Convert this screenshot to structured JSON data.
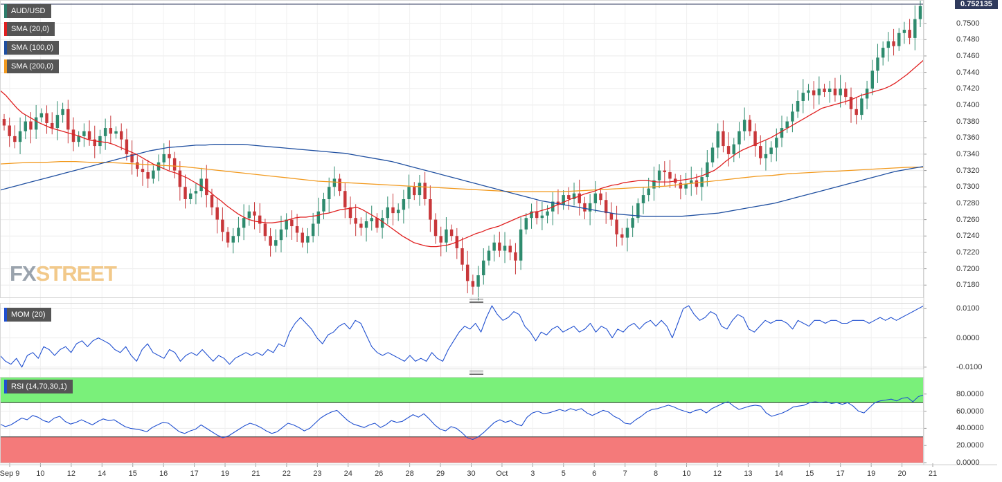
{
  "legend": {
    "symbol": "AUD/USD",
    "sma20": "SMA (20,0)",
    "sma100": "SMA (100,0)",
    "sma200": "SMA (200,0)",
    "mom": "MOM (20)",
    "rsi": "RSI (14,70,30,1)"
  },
  "colors": {
    "symbol": "#2e7d6b",
    "sma20": "#e02020",
    "sma100": "#1f4fa0",
    "sma200": "#f29a1f",
    "mom": "#1f4fd0",
    "rsi": "#1f4fd0",
    "bull": "#2e8b6e",
    "bear": "#c8373a",
    "rsi_overbought": "#7af07a",
    "rsi_oversold": "#f47a7a"
  },
  "watermark": {
    "part1": "FX",
    "part2": "STREET"
  },
  "last_price_label": "0.752135",
  "chart_data": [
    {
      "type": "candlestick",
      "title": "AUD/USD",
      "ylim": [
        0.7165,
        0.7525
      ],
      "yticks": [
        "0.7500",
        "0.7480",
        "0.7460",
        "0.7440",
        "0.7420",
        "0.7400",
        "0.7380",
        "0.7360",
        "0.7340",
        "0.7320",
        "0.7300",
        "0.7280",
        "0.7260",
        "0.7240",
        "0.7220",
        "0.7200",
        "0.7180"
      ],
      "x_labels": [
        "Sep 9",
        "10",
        "12",
        "14",
        "15",
        "16",
        "17",
        "19",
        "21",
        "22",
        "23",
        "24",
        "26",
        "28",
        "29",
        "30",
        "Oct",
        "3",
        "5",
        "6",
        "7",
        "8",
        "10",
        "12",
        "13",
        "14",
        "15",
        "17",
        "19",
        "20",
        "21"
      ],
      "closes": [
        0.7375,
        0.7362,
        0.7355,
        0.7368,
        0.738,
        0.737,
        0.7385,
        0.739,
        0.7378,
        0.7372,
        0.7388,
        0.7395,
        0.737,
        0.7355,
        0.7362,
        0.7368,
        0.7358,
        0.735,
        0.7362,
        0.7372,
        0.7365,
        0.7368,
        0.7358,
        0.734,
        0.733,
        0.7322,
        0.7318,
        0.731,
        0.732,
        0.733,
        0.734,
        0.7335,
        0.732,
        0.73,
        0.7285,
        0.7292,
        0.7295,
        0.731,
        0.729,
        0.7275,
        0.726,
        0.7245,
        0.7232,
        0.724,
        0.725,
        0.7262,
        0.727,
        0.7265,
        0.7255,
        0.724,
        0.7228,
        0.7235,
        0.7248,
        0.726,
        0.7252,
        0.7244,
        0.7232,
        0.724,
        0.7255,
        0.727,
        0.7285,
        0.73,
        0.731,
        0.7295,
        0.7275,
        0.7262,
        0.7255,
        0.725,
        0.7258,
        0.7262,
        0.725,
        0.7262,
        0.7275,
        0.7268,
        0.7272,
        0.7285,
        0.73,
        0.729,
        0.7305,
        0.7285,
        0.726,
        0.724,
        0.7232,
        0.7248,
        0.724,
        0.7225,
        0.7205,
        0.7185,
        0.7178,
        0.7192,
        0.721,
        0.7222,
        0.7232,
        0.7222,
        0.7228,
        0.722,
        0.721,
        0.7248,
        0.7262,
        0.727,
        0.7262,
        0.7265,
        0.727,
        0.7282,
        0.7278,
        0.729,
        0.7285,
        0.7292,
        0.728,
        0.727,
        0.728,
        0.7292,
        0.7284,
        0.7268,
        0.726,
        0.7242,
        0.7238,
        0.725,
        0.7262,
        0.728,
        0.729,
        0.7298,
        0.7308,
        0.732,
        0.7318,
        0.731,
        0.7305,
        0.7298,
        0.7304,
        0.7308,
        0.73,
        0.7312,
        0.733,
        0.7348,
        0.7368,
        0.735,
        0.734,
        0.7352,
        0.7368,
        0.7382,
        0.7368,
        0.735,
        0.7335,
        0.734,
        0.7348,
        0.736,
        0.7372,
        0.738,
        0.7392,
        0.7405,
        0.7415,
        0.7418,
        0.7412,
        0.742,
        0.7416,
        0.742,
        0.7412,
        0.742,
        0.741,
        0.7395,
        0.7388,
        0.7408,
        0.742,
        0.7442,
        0.7458,
        0.747,
        0.7478,
        0.7472,
        0.7488,
        0.7492,
        0.7482,
        0.7505,
        0.7521
      ],
      "series": [
        {
          "name": "SMA (20,0)",
          "values": [
            0.7418,
            0.7412,
            0.7404,
            0.7396,
            0.739,
            0.7386,
            0.7382,
            0.7378,
            0.7375,
            0.7372,
            0.737,
            0.7368,
            0.7366,
            0.7364,
            0.7362,
            0.7359,
            0.7357,
            0.7356,
            0.7355,
            0.7354,
            0.7352,
            0.7349,
            0.7346,
            0.7343,
            0.734,
            0.7336,
            0.7332,
            0.7328,
            0.7325,
            0.7322,
            0.7319,
            0.7317,
            0.7314,
            0.7311,
            0.7307,
            0.7303,
            0.7299,
            0.7294,
            0.7288,
            0.7283,
            0.7277,
            0.7272,
            0.7267,
            0.7263,
            0.726,
            0.7258,
            0.7257,
            0.7256,
            0.7256,
            0.7257,
            0.7258,
            0.726,
            0.7262,
            0.7263,
            0.7263,
            0.7264,
            0.7265,
            0.7267,
            0.7268,
            0.727,
            0.7272,
            0.7273,
            0.7274,
            0.7275,
            0.7272,
            0.7268,
            0.7264,
            0.726,
            0.7255,
            0.725,
            0.7245,
            0.724,
            0.7236,
            0.7232,
            0.723,
            0.7228,
            0.7227,
            0.7227,
            0.7228,
            0.7229,
            0.7231,
            0.7234,
            0.7237,
            0.724,
            0.7243,
            0.7245,
            0.7248,
            0.725,
            0.7252,
            0.7255,
            0.7258,
            0.7261,
            0.7264,
            0.7266,
            0.7269,
            0.727,
            0.7272,
            0.7274,
            0.7277,
            0.728,
            0.7283,
            0.7286,
            0.7288,
            0.7291,
            0.7293,
            0.7295,
            0.7298,
            0.73,
            0.7302,
            0.7303,
            0.7305,
            0.7306,
            0.7307,
            0.7308,
            0.7308,
            0.7307,
            0.7306,
            0.7306,
            0.7306,
            0.7307,
            0.7308,
            0.7309,
            0.731,
            0.7312,
            0.7314,
            0.7317,
            0.732,
            0.7325,
            0.7331,
            0.7336,
            0.7341,
            0.7345,
            0.7348,
            0.7351,
            0.7354,
            0.7357,
            0.736,
            0.7364,
            0.7368,
            0.7372,
            0.7376,
            0.738,
            0.7384,
            0.7388,
            0.7392,
            0.7396,
            0.7398,
            0.74,
            0.7402,
            0.7404,
            0.7406,
            0.7409,
            0.7412,
            0.7414,
            0.7416,
            0.7418,
            0.742,
            0.7423,
            0.7427,
            0.7432,
            0.7437,
            0.7443,
            0.7449,
            0.7455
          ]
        },
        {
          "name": "SMA (100,0)",
          "values": [
            0.7296,
            0.7299,
            0.7302,
            0.7305,
            0.7308,
            0.7311,
            0.7314,
            0.7317,
            0.732,
            0.7323,
            0.7326,
            0.7329,
            0.7332,
            0.7335,
            0.7338,
            0.7341,
            0.7344,
            0.7346,
            0.7348,
            0.7349,
            0.735,
            0.7351,
            0.7351,
            0.7352,
            0.7352,
            0.7352,
            0.7352,
            0.7351,
            0.735,
            0.7349,
            0.7348,
            0.7347,
            0.7346,
            0.7345,
            0.7344,
            0.7343,
            0.7342,
            0.7341,
            0.7339,
            0.7337,
            0.7335,
            0.7333,
            0.7331,
            0.7328,
            0.7325,
            0.7322,
            0.7319,
            0.7316,
            0.7313,
            0.731,
            0.7307,
            0.7304,
            0.7301,
            0.7298,
            0.7295,
            0.7292,
            0.7289,
            0.7286,
            0.7283,
            0.7281,
            0.7279,
            0.7277,
            0.7275,
            0.7273,
            0.7271,
            0.7269,
            0.7267,
            0.7266,
            0.7265,
            0.7264,
            0.7264,
            0.7264,
            0.7264,
            0.7264,
            0.7265,
            0.7266,
            0.7267,
            0.7268,
            0.727,
            0.7272,
            0.7274,
            0.7276,
            0.7278,
            0.728,
            0.7283,
            0.7286,
            0.7289,
            0.7292,
            0.7295,
            0.7298,
            0.7301,
            0.7304,
            0.7307,
            0.731,
            0.7313,
            0.7316,
            0.7319,
            0.7321,
            0.7323,
            0.7325
          ]
        },
        {
          "name": "SMA (200,0)",
          "values": [
            0.7328,
            0.7329,
            0.733,
            0.733,
            0.7331,
            0.7331,
            0.733,
            0.733,
            0.7329,
            0.7328,
            0.7327,
            0.7326,
            0.7325,
            0.7323,
            0.7321,
            0.7319,
            0.7317,
            0.7315,
            0.7313,
            0.7311,
            0.7309,
            0.7307,
            0.7306,
            0.7305,
            0.7304,
            0.7303,
            0.7302,
            0.7301,
            0.73,
            0.7299,
            0.7298,
            0.7297,
            0.7296,
            0.7295,
            0.7294,
            0.7294,
            0.7294,
            0.7294,
            0.7295,
            0.7296,
            0.7297,
            0.7298,
            0.7299,
            0.73,
            0.7301,
            0.7303,
            0.7305,
            0.7307,
            0.7309,
            0.7311,
            0.7313,
            0.7314,
            0.7316,
            0.7317,
            0.7318,
            0.7319,
            0.732,
            0.7321,
            0.7322,
            0.7323,
            0.7324,
            0.7324
          ]
        }
      ]
    },
    {
      "type": "line",
      "title": "MOM (20)",
      "ylim": [
        -0.0105,
        0.0115
      ],
      "yticks": [
        "0.0100",
        "0.0000",
        "-0.0100"
      ],
      "series": [
        {
          "name": "MOM (20)",
          "values": [
            -0.006,
            -0.008,
            -0.009,
            -0.007,
            -0.01,
            -0.006,
            -0.005,
            -0.007,
            -0.003,
            -0.004,
            -0.006,
            -0.004,
            -0.003,
            -0.005,
            -0.002,
            -0.001,
            -0.003,
            -0.001,
            0.0,
            -0.001,
            -0.002,
            -0.004,
            -0.005,
            -0.003,
            -0.006,
            -0.008,
            -0.004,
            -0.002,
            -0.005,
            -0.006,
            -0.007,
            -0.004,
            -0.005,
            -0.008,
            -0.006,
            -0.005,
            -0.006,
            -0.004,
            -0.006,
            -0.008,
            -0.006,
            -0.007,
            -0.009,
            -0.007,
            -0.006,
            -0.005,
            -0.006,
            -0.005,
            -0.006,
            -0.004,
            -0.005,
            -0.002,
            -0.003,
            0.002,
            0.005,
            0.007,
            0.005,
            0.003,
            0.0,
            -0.002,
            0.001,
            0.002,
            0.004,
            0.005,
            0.003,
            0.006,
            0.005,
            0.001,
            -0.003,
            -0.005,
            -0.006,
            -0.005,
            -0.006,
            -0.007,
            -0.008,
            -0.006,
            -0.008,
            -0.007,
            -0.008,
            -0.005,
            -0.007,
            -0.008,
            -0.004,
            -0.001,
            0.002,
            0.004,
            0.003,
            0.005,
            0.002,
            0.007,
            0.011,
            0.008,
            0.006,
            0.007,
            0.009,
            0.008,
            0.004,
            0.002,
            -0.001,
            0.002,
            0.001,
            0.003,
            0.004,
            0.002,
            0.003,
            0.004,
            0.002,
            0.003,
            0.005,
            0.002,
            0.004,
            0.003,
            0.0,
            0.003,
            0.002,
            0.004,
            0.005,
            0.003,
            0.005,
            0.006,
            0.004,
            0.006,
            0.004,
            0.0,
            0.005,
            0.01,
            0.011,
            0.008,
            0.006,
            0.007,
            0.009,
            0.008,
            0.004,
            0.003,
            0.006,
            0.008,
            0.007,
            0.003,
            0.002,
            0.004,
            0.006,
            0.005,
            0.006,
            0.006,
            0.005,
            0.003,
            0.006,
            0.005,
            0.004,
            0.006,
            0.006,
            0.005,
            0.006,
            0.006,
            0.005,
            0.005,
            0.006,
            0.006,
            0.006,
            0.005,
            0.006,
            0.007,
            0.006,
            0.007,
            0.006,
            0.007,
            0.008,
            0.009,
            0.01,
            0.011
          ]
        }
      ]
    },
    {
      "type": "line",
      "title": "RSI (14,70,30,1)",
      "ylim": [
        0,
        100
      ],
      "yticks": [
        "80.0000",
        "60.0000",
        "40.0000",
        "20.0000",
        "0.0000"
      ],
      "levels": {
        "overbought": 70,
        "oversold": 30
      },
      "series": [
        {
          "name": "RSI (14,70,30,1)",
          "values": [
            45,
            42,
            44,
            48,
            52,
            50,
            55,
            53,
            49,
            47,
            52,
            54,
            48,
            45,
            47,
            50,
            47,
            44,
            48,
            51,
            49,
            50,
            46,
            42,
            40,
            39,
            38,
            36,
            41,
            44,
            47,
            46,
            41,
            36,
            34,
            37,
            39,
            44,
            40,
            36,
            32,
            29,
            31,
            35,
            39,
            43,
            46,
            44,
            41,
            37,
            34,
            36,
            41,
            46,
            44,
            41,
            37,
            40,
            46,
            52,
            56,
            59,
            61,
            55,
            49,
            45,
            43,
            41,
            44,
            46,
            41,
            44,
            49,
            47,
            48,
            52,
            56,
            53,
            57,
            51,
            44,
            39,
            37,
            42,
            40,
            35,
            29,
            27,
            30,
            35,
            41,
            47,
            50,
            47,
            49,
            45,
            43,
            53,
            58,
            60,
            57,
            58,
            60,
            62,
            60,
            63,
            61,
            63,
            58,
            55,
            58,
            61,
            59,
            54,
            51,
            46,
            45,
            50,
            54,
            59,
            62,
            63,
            65,
            67,
            65,
            62,
            60,
            58,
            61,
            62,
            58,
            63,
            66,
            69,
            71,
            66,
            62,
            64,
            66,
            67,
            66,
            58,
            54,
            56,
            58,
            61,
            65,
            66,
            67,
            70,
            71,
            70,
            71,
            69,
            70,
            68,
            70,
            66,
            60,
            58,
            64,
            70,
            72,
            73,
            74,
            72,
            75,
            76,
            71,
            77,
            79
          ]
        }
      ]
    }
  ]
}
